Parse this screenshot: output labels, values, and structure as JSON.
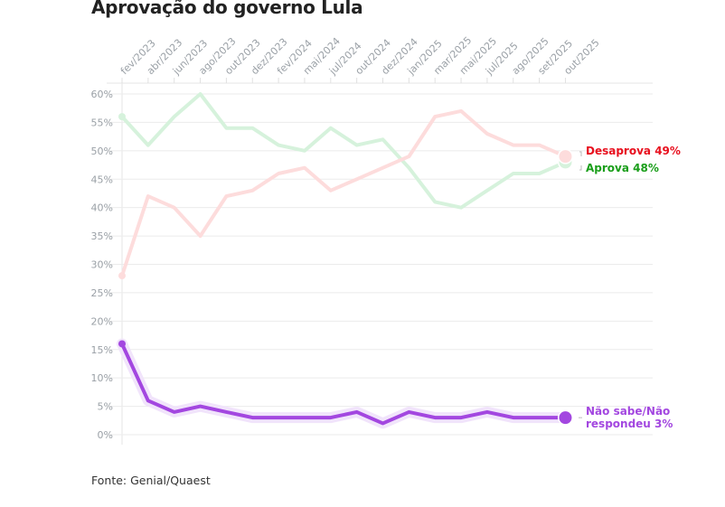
{
  "title": "Aprovação do governo Lula",
  "source": "Fonte: Genial/Quaest",
  "chart_data": {
    "type": "line",
    "title": "Aprovação do governo Lula",
    "xlabel": "",
    "ylabel": "",
    "categories": [
      "fev/2023",
      "abr/2023",
      "jun/2023",
      "ago/2023",
      "out/2023",
      "dez/2023",
      "fev/2024",
      "mai/2024",
      "jul/2024",
      "out/2024",
      "dez/2024",
      "jan/2025",
      "mar/2025",
      "mai/2025",
      "jul/2025",
      "ago/2025",
      "set/2025",
      "out/2025"
    ],
    "y_ticks": [
      0,
      5,
      10,
      15,
      20,
      25,
      30,
      35,
      40,
      45,
      50,
      55,
      60
    ],
    "y_tick_labels": [
      "0%",
      "5%",
      "10%",
      "15%",
      "20%",
      "25%",
      "30%",
      "35%",
      "40%",
      "45%",
      "50%",
      "55%",
      "60%"
    ],
    "ylim": [
      0,
      60
    ],
    "grid": true,
    "legend": "end-of-line labels (right)",
    "series": [
      {
        "name": "Aprova",
        "label": "Aprova 48%",
        "color": "#1a9e1a",
        "line_color": "#d6f2dc",
        "emphasized": false,
        "values": [
          56,
          51,
          56,
          60,
          54,
          54,
          51,
          50,
          54,
          51,
          52,
          47,
          41,
          40,
          43,
          46,
          46,
          48
        ]
      },
      {
        "name": "Desaprova",
        "label": "Desaprova 49%",
        "color": "#e8101e",
        "line_color": "#fddcdc",
        "emphasized": false,
        "values": [
          28,
          42,
          40,
          35,
          42,
          43,
          46,
          47,
          43,
          45,
          47,
          49,
          56,
          57,
          53,
          51,
          51,
          49
        ]
      },
      {
        "name": "Não sabe/Não respondeu",
        "label_lines": [
          "Não sabe/Não",
          "respondeu 3%"
        ],
        "color": "#a347e0",
        "line_color": "#a347e0",
        "halo_color": "#f1e4fb",
        "emphasized": true,
        "values": [
          16,
          6,
          4,
          5,
          4,
          3,
          3,
          3,
          3,
          4,
          2,
          4,
          3,
          3,
          4,
          3,
          3,
          3
        ]
      }
    ]
  }
}
